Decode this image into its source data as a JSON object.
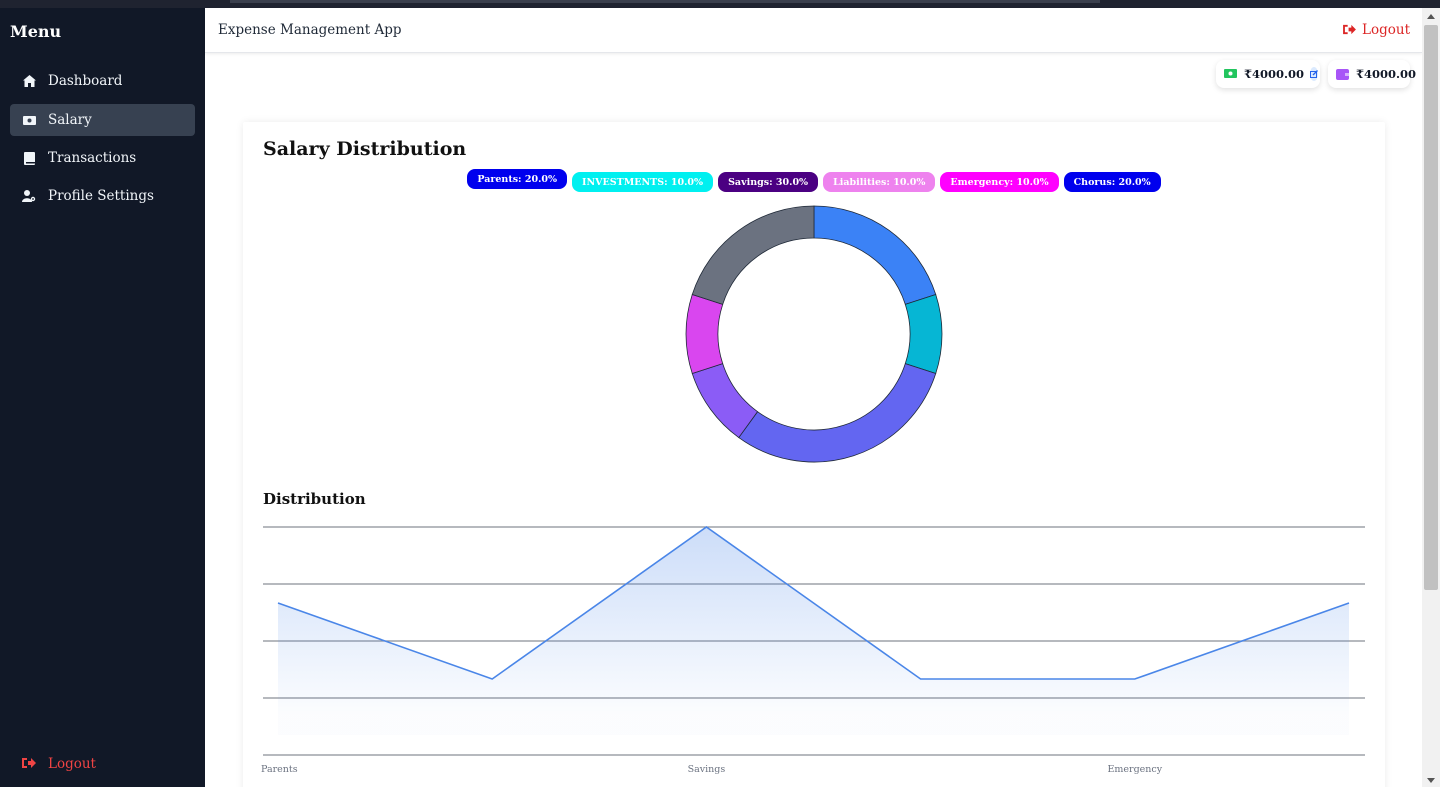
{
  "sidebar": {
    "title": "Menu",
    "items": [
      {
        "label": "Dashboard",
        "icon": "home-icon"
      },
      {
        "label": "Salary",
        "icon": "money-bill-icon"
      },
      {
        "label": "Transactions",
        "icon": "book-icon"
      },
      {
        "label": "Profile Settings",
        "icon": "user-cog-icon"
      }
    ],
    "active_item": "Salary",
    "logout_label": "Logout"
  },
  "header": {
    "app_title": "Expense Management App",
    "logout_label": "Logout"
  },
  "balances": {
    "salary_amount": "₹4000.00",
    "wallet_amount": "₹4000.00"
  },
  "card": {
    "title": "Salary Distribution",
    "distribution_title": "Distribution"
  },
  "colors": {
    "sidebar_bg": "#111827",
    "active_bg": "#374151",
    "danger": "#ef4444",
    "line": "#4a86e8"
  },
  "chart_data": [
    {
      "type": "pie",
      "variant": "doughnut",
      "legend": [
        {
          "label": "Parents: 20.0%",
          "color": "#0000ee",
          "text_color": "#ffffff"
        },
        {
          "label": "INVESTMENTS: 10.0%",
          "color": "#00f0f0",
          "text_color": "#ffffff"
        },
        {
          "label": "Savings: 30.0%",
          "color": "#4b0082",
          "text_color": "#ffffff"
        },
        {
          "label": "Liabilities: 10.0%",
          "color": "#ee82ee",
          "text_color": "#ffffff"
        },
        {
          "label": "Emergency: 10.0%",
          "color": "#ff00ff",
          "text_color": "#ffffff"
        },
        {
          "label": "Chorus: 20.0%",
          "color": "#0000ee",
          "text_color": "#ffffff"
        }
      ],
      "slices": [
        {
          "value": 20,
          "color": "#3b82f6"
        },
        {
          "value": 10,
          "color": "#06b6d4"
        },
        {
          "value": 30,
          "color": "#6366f1"
        },
        {
          "value": 10,
          "color": "#8b5cf6"
        },
        {
          "value": 10,
          "color": "#d946ef"
        },
        {
          "value": 20,
          "color": "#6b7280"
        }
      ]
    },
    {
      "type": "area",
      "categories": [
        "Parents",
        "INVESTMENTS",
        "Savings",
        "Liabilities",
        "Emergency",
        "Chorus"
      ],
      "visible_tick_labels": [
        "Parents",
        "Savings",
        "Emergency"
      ],
      "values": [
        20,
        10,
        30,
        10,
        10,
        20
      ],
      "ylim": [
        0,
        30
      ],
      "grid": true,
      "line_color": "#4a86e8"
    }
  ]
}
